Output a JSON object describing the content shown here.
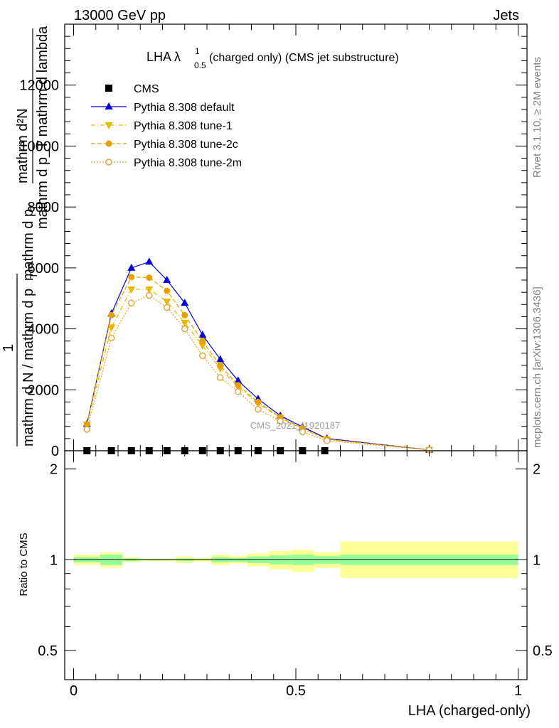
{
  "header": {
    "left": "13000 GeV pp",
    "right": "Jets"
  },
  "side": {
    "top_right": "Rivet 3.1.10, ≥ 2M events",
    "bottom_right": "mcplots.cern.ch [arXiv:1306.3436]"
  },
  "watermark": "CMS_2021_I1920187",
  "chart_data": [
    {
      "type": "line",
      "title_main": "LHA λ",
      "title_sup": "1",
      "title_sub": "0.5",
      "title_rest": " (charged only) (CMS jet substructure)",
      "ylabel": {
        "top_num": "mathrm d²N",
        "top_den": "mathrm d p_T mathrm d lambda",
        "t1": "1",
        "den_a": "mathrm d N / mathrm d p",
        "den_sub": "T",
        "overlay": "mathrm d p",
        "overlay_sub": "T"
      },
      "ylim": [
        0,
        14000
      ],
      "xlim": [
        -0.02,
        1.02
      ],
      "yticks": [
        0,
        2000,
        4000,
        6000,
        8000,
        10000,
        12000
      ],
      "ytick_labels": [
        "0",
        "2000",
        "4000",
        "6000",
        "8000",
        "10000",
        "12000"
      ],
      "grid": false,
      "legend_position": "top-left",
      "series": [
        {
          "name": "CMS",
          "color": "#000000",
          "marker": "square",
          "line": "none",
          "x": [
            0.03,
            0.085,
            0.13,
            0.17,
            0.21,
            0.25,
            0.29,
            0.33,
            0.37,
            0.415,
            0.465,
            0.515,
            0.565
          ],
          "y": [
            0,
            0,
            0,
            0,
            0,
            0,
            0,
            0,
            0,
            0,
            0,
            0,
            0
          ]
        },
        {
          "name": "Pythia 8.308 default",
          "color": "#0000dd",
          "marker": "triangle-up",
          "line": "solid",
          "x": [
            0.03,
            0.085,
            0.13,
            0.17,
            0.21,
            0.25,
            0.29,
            0.33,
            0.37,
            0.415,
            0.465,
            0.515,
            0.57,
            0.8
          ],
          "y": [
            880,
            4500,
            6000,
            6200,
            5600,
            4850,
            3800,
            3000,
            2300,
            1700,
            1150,
            780,
            400,
            30
          ]
        },
        {
          "name": "Pythia 8.308 tune-1",
          "color": "#e8b800",
          "marker": "triangle-down",
          "line": "dashdot",
          "x": [
            0.03,
            0.085,
            0.13,
            0.17,
            0.21,
            0.25,
            0.29,
            0.33,
            0.37,
            0.415,
            0.465,
            0.515,
            0.57,
            0.8
          ],
          "y": [
            860,
            4050,
            5300,
            5300,
            4900,
            4200,
            3450,
            2700,
            2100,
            1550,
            1080,
            720,
            370,
            28
          ]
        },
        {
          "name": "Pythia 8.308 tune-2c",
          "color": "#e8a000",
          "marker": "circle",
          "line": "dashed",
          "x": [
            0.03,
            0.085,
            0.13,
            0.17,
            0.21,
            0.25,
            0.29,
            0.33,
            0.37,
            0.415,
            0.465,
            0.515,
            0.57,
            0.8
          ],
          "y": [
            870,
            4450,
            5700,
            5680,
            5250,
            4450,
            3600,
            2800,
            2150,
            1600,
            1100,
            740,
            380,
            28
          ]
        },
        {
          "name": "Pythia 8.308 tune-2m",
          "color": "#e0a030",
          "marker": "open-circle",
          "line": "dotted",
          "x": [
            0.03,
            0.085,
            0.13,
            0.17,
            0.21,
            0.25,
            0.29,
            0.33,
            0.37,
            0.415,
            0.465,
            0.515,
            0.57,
            0.8
          ],
          "y": [
            700,
            3700,
            4850,
            5100,
            4700,
            4000,
            3120,
            2400,
            1940,
            1360,
            970,
            620,
            330,
            25
          ]
        }
      ]
    },
    {
      "type": "area",
      "ylabel": "Ratio to CMS",
      "xlabel": "LHA (charged-only)",
      "ylim": [
        0.4,
        2.3
      ],
      "xlim": [
        -0.02,
        1.02
      ],
      "log_y": true,
      "yticks": [
        0.5,
        1,
        2
      ],
      "ytick_labels": [
        "0.5",
        "1",
        "2"
      ],
      "xticks": [
        0,
        0.5,
        1
      ],
      "xtick_labels": [
        "0",
        "0.5",
        "1"
      ],
      "reference_line": 1,
      "bands": {
        "edges": [
          0,
          0.06,
          0.11,
          0.15,
          0.19,
          0.23,
          0.27,
          0.31,
          0.35,
          0.39,
          0.44,
          0.49,
          0.54,
          0.6,
          1.0
        ],
        "inner_lo": [
          0.98,
          0.96,
          0.99,
          0.995,
          0.995,
          0.99,
          0.995,
          0.98,
          0.985,
          0.975,
          0.965,
          0.96,
          0.97,
          0.96
        ],
        "inner_hi": [
          1.02,
          1.04,
          1.01,
          1.005,
          1.005,
          1.01,
          1.005,
          1.02,
          1.015,
          1.025,
          1.035,
          1.04,
          1.03,
          1.04
        ],
        "outer_lo": [
          0.96,
          0.94,
          0.98,
          0.99,
          0.99,
          0.975,
          0.985,
          0.96,
          0.97,
          0.95,
          0.93,
          0.91,
          0.94,
          0.87
        ],
        "outer_hi": [
          1.04,
          1.06,
          1.02,
          1.01,
          1.01,
          1.025,
          1.015,
          1.04,
          1.03,
          1.05,
          1.07,
          1.08,
          1.06,
          1.15
        ],
        "inner_color": "#99ff99",
        "outer_color": "#ffff99"
      }
    }
  ]
}
